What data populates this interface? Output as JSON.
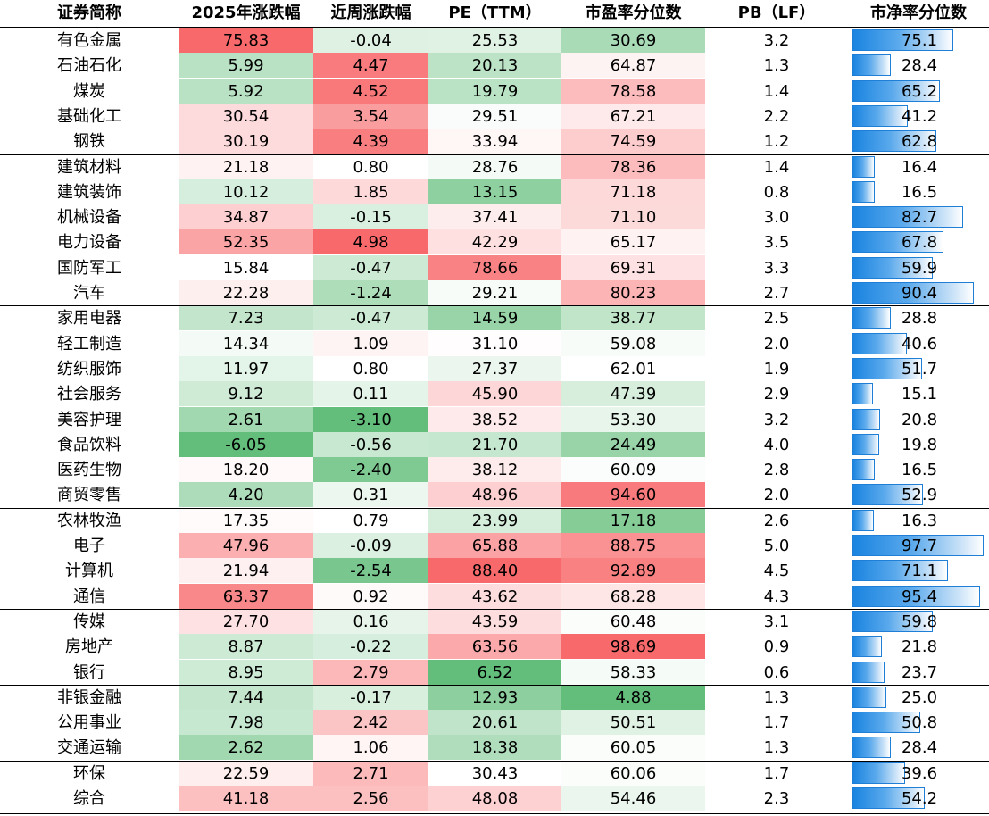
{
  "headers": [
    "证券简称",
    "2025年涨跌幅",
    "近周涨跌幅",
    "PE（TTM）",
    "市盈率分位数",
    "PB（LF）",
    "市净率分位数"
  ],
  "groups_end_after_row": [
    4,
    10,
    18,
    22,
    25,
    28
  ],
  "colors": {
    "red_strong": "#f8696b",
    "green_strong": "#63be7b",
    "white": "#ffffff",
    "bar_blue": "#1a84e0"
  },
  "rows": [
    {
      "name": "有色金属",
      "ytd": "75.83",
      "week": "-0.04",
      "pe": "25.53",
      "pe_pct": "30.69",
      "pb": "3.2",
      "pb_pct": "75.1"
    },
    {
      "name": "石油石化",
      "ytd": "5.99",
      "week": "4.47",
      "pe": "20.13",
      "pe_pct": "64.87",
      "pb": "1.3",
      "pb_pct": "28.4"
    },
    {
      "name": "煤炭",
      "ytd": "5.92",
      "week": "4.52",
      "pe": "19.79",
      "pe_pct": "78.58",
      "pb": "1.4",
      "pb_pct": "65.2"
    },
    {
      "name": "基础化工",
      "ytd": "30.54",
      "week": "3.54",
      "pe": "29.51",
      "pe_pct": "67.21",
      "pb": "2.2",
      "pb_pct": "41.2"
    },
    {
      "name": "钢铁",
      "ytd": "30.19",
      "week": "4.39",
      "pe": "33.94",
      "pe_pct": "74.59",
      "pb": "1.2",
      "pb_pct": "62.8"
    },
    {
      "name": "建筑材料",
      "ytd": "21.18",
      "week": "0.80",
      "pe": "28.76",
      "pe_pct": "78.36",
      "pb": "1.4",
      "pb_pct": "16.4"
    },
    {
      "name": "建筑装饰",
      "ytd": "10.12",
      "week": "1.85",
      "pe": "13.15",
      "pe_pct": "71.18",
      "pb": "0.8",
      "pb_pct": "16.5"
    },
    {
      "name": "机械设备",
      "ytd": "34.87",
      "week": "-0.15",
      "pe": "37.41",
      "pe_pct": "71.10",
      "pb": "3.0",
      "pb_pct": "82.7"
    },
    {
      "name": "电力设备",
      "ytd": "52.35",
      "week": "4.98",
      "pe": "42.29",
      "pe_pct": "65.17",
      "pb": "3.5",
      "pb_pct": "67.8"
    },
    {
      "name": "国防军工",
      "ytd": "15.84",
      "week": "-0.47",
      "pe": "78.66",
      "pe_pct": "69.31",
      "pb": "3.3",
      "pb_pct": "59.9"
    },
    {
      "name": "汽车",
      "ytd": "22.28",
      "week": "-1.24",
      "pe": "29.21",
      "pe_pct": "80.23",
      "pb": "2.7",
      "pb_pct": "90.4"
    },
    {
      "name": "家用电器",
      "ytd": "7.23",
      "week": "-0.47",
      "pe": "14.59",
      "pe_pct": "38.77",
      "pb": "2.5",
      "pb_pct": "28.8"
    },
    {
      "name": "轻工制造",
      "ytd": "14.34",
      "week": "1.09",
      "pe": "31.10",
      "pe_pct": "59.08",
      "pb": "2.0",
      "pb_pct": "40.6"
    },
    {
      "name": "纺织服饰",
      "ytd": "11.97",
      "week": "0.80",
      "pe": "27.37",
      "pe_pct": "62.01",
      "pb": "1.9",
      "pb_pct": "51.7"
    },
    {
      "name": "社会服务",
      "ytd": "9.12",
      "week": "0.11",
      "pe": "45.90",
      "pe_pct": "47.39",
      "pb": "2.9",
      "pb_pct": "15.1"
    },
    {
      "name": "美容护理",
      "ytd": "2.61",
      "week": "-3.10",
      "pe": "38.52",
      "pe_pct": "53.30",
      "pb": "3.2",
      "pb_pct": "20.8"
    },
    {
      "name": "食品饮料",
      "ytd": "-6.05",
      "week": "-0.56",
      "pe": "21.70",
      "pe_pct": "24.49",
      "pb": "4.0",
      "pb_pct": "19.8"
    },
    {
      "name": "医药生物",
      "ytd": "18.20",
      "week": "-2.40",
      "pe": "38.12",
      "pe_pct": "60.09",
      "pb": "2.8",
      "pb_pct": "16.5"
    },
    {
      "name": "商贸零售",
      "ytd": "4.20",
      "week": "0.31",
      "pe": "48.96",
      "pe_pct": "94.60",
      "pb": "2.0",
      "pb_pct": "52.9"
    },
    {
      "name": "农林牧渔",
      "ytd": "17.35",
      "week": "0.79",
      "pe": "23.99",
      "pe_pct": "17.18",
      "pb": "2.6",
      "pb_pct": "16.3"
    },
    {
      "name": "电子",
      "ytd": "47.96",
      "week": "-0.09",
      "pe": "65.88",
      "pe_pct": "88.75",
      "pb": "5.0",
      "pb_pct": "97.7"
    },
    {
      "name": "计算机",
      "ytd": "21.94",
      "week": "-2.54",
      "pe": "88.40",
      "pe_pct": "92.89",
      "pb": "4.5",
      "pb_pct": "71.1"
    },
    {
      "name": "通信",
      "ytd": "63.37",
      "week": "0.92",
      "pe": "43.62",
      "pe_pct": "68.28",
      "pb": "4.3",
      "pb_pct": "95.4"
    },
    {
      "name": "传媒",
      "ytd": "27.70",
      "week": "0.16",
      "pe": "43.59",
      "pe_pct": "60.48",
      "pb": "3.1",
      "pb_pct": "59.8"
    },
    {
      "name": "房地产",
      "ytd": "8.87",
      "week": "-0.22",
      "pe": "63.56",
      "pe_pct": "98.69",
      "pb": "0.9",
      "pb_pct": "21.8"
    },
    {
      "name": "银行",
      "ytd": "8.95",
      "week": "2.79",
      "pe": "6.52",
      "pe_pct": "58.33",
      "pb": "0.6",
      "pb_pct": "23.7"
    },
    {
      "name": "非银金融",
      "ytd": "7.44",
      "week": "-0.17",
      "pe": "12.93",
      "pe_pct": "4.88",
      "pb": "1.3",
      "pb_pct": "25.0"
    },
    {
      "name": "公用事业",
      "ytd": "7.98",
      "week": "2.42",
      "pe": "20.61",
      "pe_pct": "50.51",
      "pb": "1.7",
      "pb_pct": "50.8"
    },
    {
      "name": "交通运输",
      "ytd": "2.62",
      "week": "1.06",
      "pe": "18.38",
      "pe_pct": "60.05",
      "pb": "1.3",
      "pb_pct": "28.4"
    },
    {
      "name": "环保",
      "ytd": "22.59",
      "week": "2.71",
      "pe": "30.43",
      "pe_pct": "60.06",
      "pb": "1.7",
      "pb_pct": "39.6"
    },
    {
      "name": "综合",
      "ytd": "41.18",
      "week": "2.56",
      "pe": "48.08",
      "pe_pct": "54.46",
      "pb": "2.3",
      "pb_pct": "54.2"
    }
  ]
}
